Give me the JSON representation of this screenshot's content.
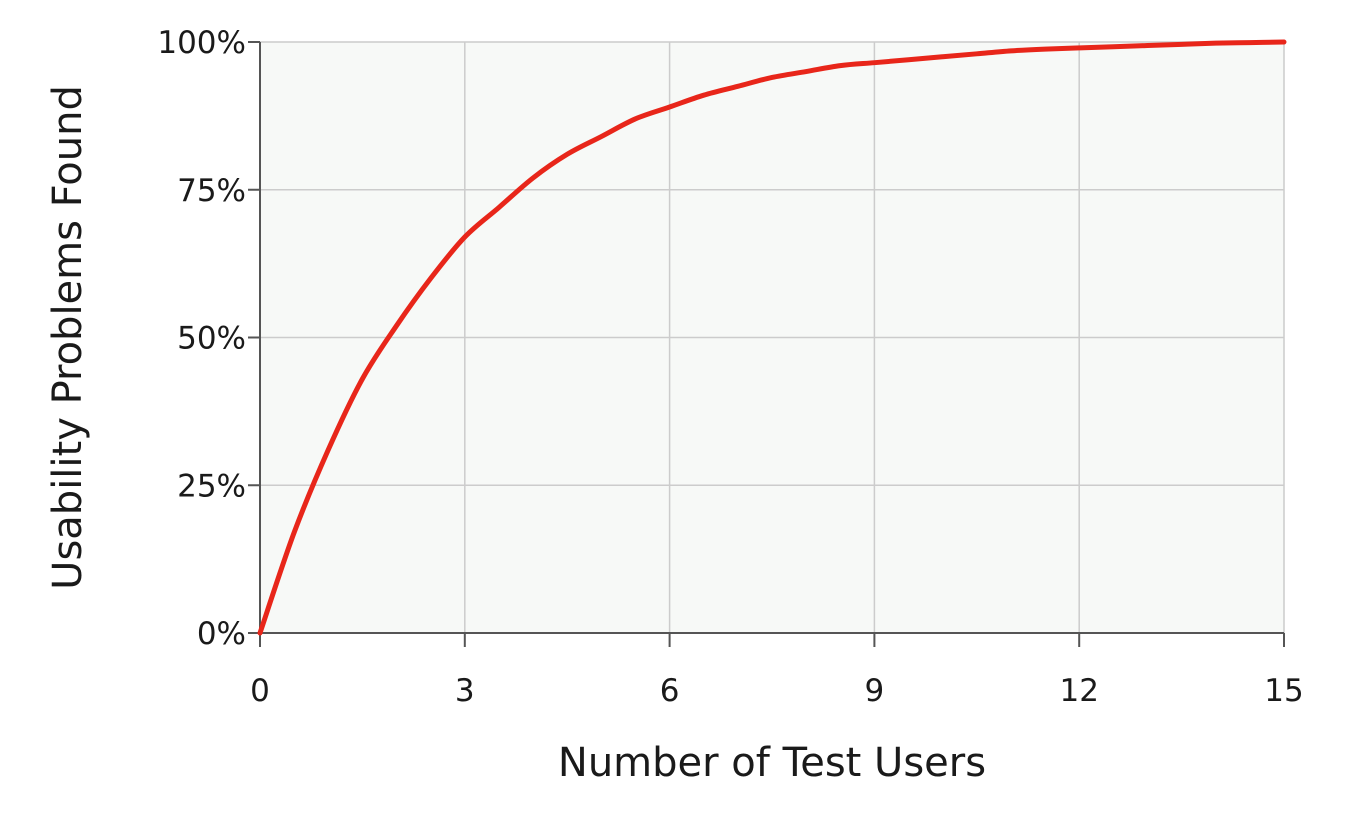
{
  "chart_data": {
    "type": "line",
    "title": "",
    "xlabel": "Number of Test Users",
    "ylabel": "Usability Problems Found",
    "xlim": [
      0,
      15
    ],
    "ylim": [
      0,
      100
    ],
    "x_ticks": [
      0,
      3,
      6,
      9,
      12,
      15
    ],
    "x_tick_labels": [
      "0",
      "3",
      "6",
      "9",
      "12",
      "15"
    ],
    "y_ticks": [
      0,
      25,
      50,
      75,
      100
    ],
    "y_tick_labels": [
      "0%",
      "25%",
      "50%",
      "75%",
      "100%"
    ],
    "grid": true,
    "series": [
      {
        "color": "#e8261a",
        "x": [
          0,
          0.5,
          1,
          1.5,
          2,
          2.5,
          3,
          3.5,
          4,
          4.5,
          5,
          5.5,
          6,
          6.5,
          7,
          7.5,
          8,
          8.5,
          9,
          9.5,
          10,
          10.5,
          11,
          11.5,
          12,
          12.5,
          13,
          13.5,
          14,
          14.5,
          15
        ],
        "y": [
          0,
          17,
          31,
          43,
          52,
          60,
          67,
          72,
          77,
          81,
          84,
          87,
          89,
          91,
          92.5,
          94,
          95,
          96,
          96.5,
          97,
          97.5,
          98,
          98.5,
          98.8,
          99,
          99.2,
          99.4,
          99.6,
          99.8,
          99.9,
          100
        ]
      }
    ],
    "colors": {
      "plot_background": "#f7f9f7",
      "grid": "#cccccc",
      "axis": "#555555"
    }
  }
}
